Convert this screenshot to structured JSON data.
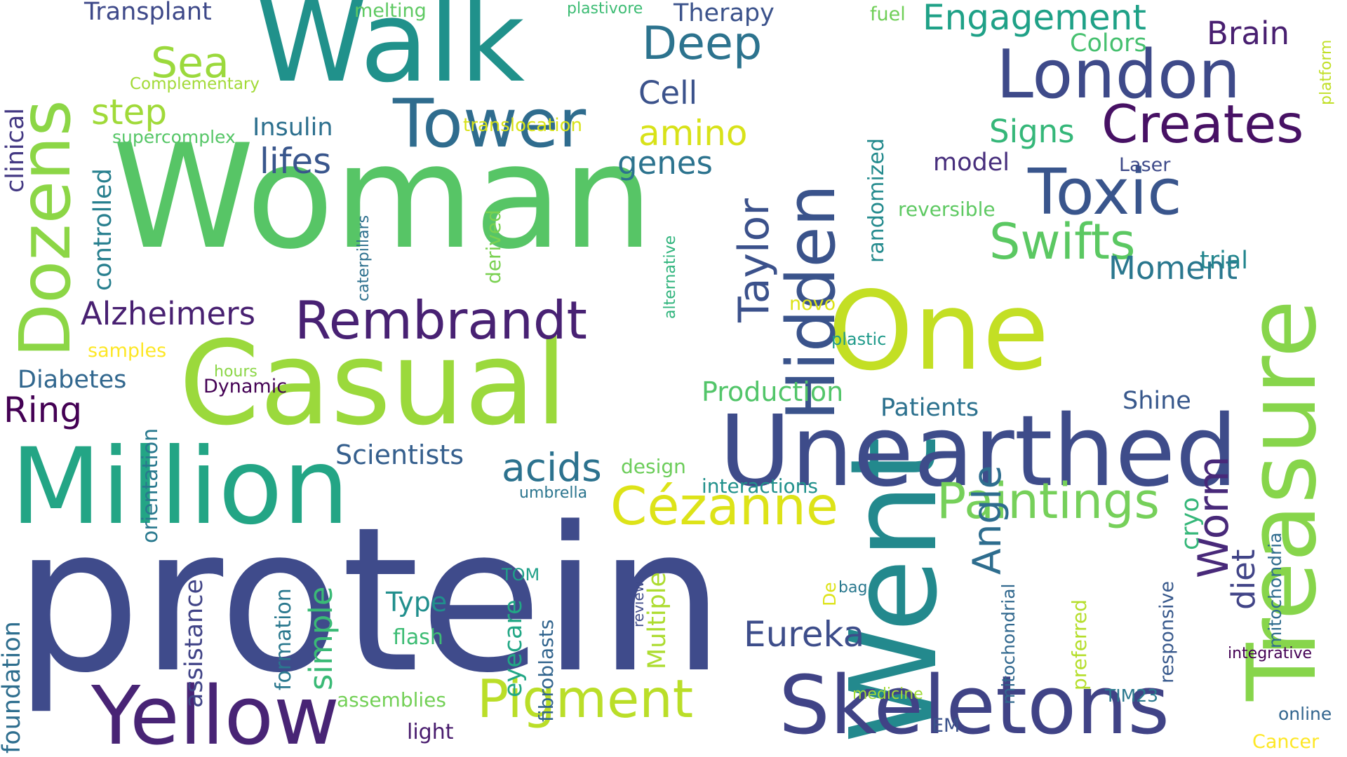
{
  "words": [
    {
      "text": "protein",
      "color": "#3f4b8b"
    },
    {
      "text": "Woman",
      "color": "#57c566"
    },
    {
      "text": "Walk",
      "color": "#20918b"
    },
    {
      "text": "Went",
      "color": "#23898d"
    },
    {
      "text": "Casual",
      "color": "#9bd93c"
    },
    {
      "text": "Million",
      "color": "#23a585"
    },
    {
      "text": "One",
      "color": "#c3df24"
    },
    {
      "text": "Treasure",
      "color": "#87d54b"
    },
    {
      "text": "Unearthed",
      "color": "#3e4c8a"
    },
    {
      "text": "Hidden",
      "color": "#3a538b"
    },
    {
      "text": "Skeletons",
      "color": "#404386"
    },
    {
      "text": "Yellow",
      "color": "#482475"
    },
    {
      "text": "Dozens",
      "color": "#8cd646"
    },
    {
      "text": "Tower",
      "color": "#2f6c8e"
    },
    {
      "text": "London",
      "color": "#3e4a89"
    },
    {
      "text": "Toxic",
      "color": "#39558c"
    },
    {
      "text": "Creates",
      "color": "#471164"
    },
    {
      "text": "Rembrandt",
      "color": "#482173"
    },
    {
      "text": "Pigment",
      "color": "#bade28"
    },
    {
      "text": "Cézanne",
      "color": "#dde318"
    },
    {
      "text": "Paintings",
      "color": "#76d05a"
    },
    {
      "text": "Swifts",
      "color": "#5bc862"
    },
    {
      "text": "Taylor",
      "color": "#3b518b"
    },
    {
      "text": "Deep",
      "color": "#2c738e"
    },
    {
      "text": "Engagement",
      "color": "#1fa187"
    },
    {
      "text": "Sea",
      "color": "#9bd93c"
    },
    {
      "text": "Worm",
      "color": "#482979"
    },
    {
      "text": "Angle",
      "color": "#2e6d8e"
    },
    {
      "text": "Eureka",
      "color": "#3d4d8a"
    },
    {
      "text": "acids",
      "color": "#2c728e"
    },
    {
      "text": "Moment",
      "color": "#2a778e"
    },
    {
      "text": "Brain",
      "color": "#481f70"
    },
    {
      "text": "Alzheimers",
      "color": "#482071"
    },
    {
      "text": "Ring",
      "color": "#440154"
    },
    {
      "text": "amino",
      "color": "#d8e219"
    },
    {
      "text": "genes",
      "color": "#2c738e"
    },
    {
      "text": "lifes",
      "color": "#39568c"
    },
    {
      "text": "step",
      "color": "#a0da39"
    },
    {
      "text": "Cell",
      "color": "#3b528b"
    },
    {
      "text": "Signs",
      "color": "#35b779"
    },
    {
      "text": "Production",
      "color": "#52c569"
    },
    {
      "text": "Scientists",
      "color": "#355f8d"
    },
    {
      "text": "Patients",
      "color": "#2c718e"
    },
    {
      "text": "Transplant",
      "color": "#3e4989"
    },
    {
      "text": "Therapy",
      "color": "#3b528b"
    },
    {
      "text": "Insulin",
      "color": "#2d708e"
    },
    {
      "text": "Diabetes",
      "color": "#31678e"
    },
    {
      "text": "Shine",
      "color": "#38588c"
    },
    {
      "text": "Colors",
      "color": "#46c06f"
    },
    {
      "text": "model",
      "color": "#472e7c"
    },
    {
      "text": "trial",
      "color": "#24868e"
    },
    {
      "text": "Type",
      "color": "#218f8d"
    },
    {
      "text": "simple",
      "color": "#3aba76"
    },
    {
      "text": "diet",
      "color": "#414487"
    },
    {
      "text": "Multiple",
      "color": "#addc30"
    },
    {
      "text": "cryo",
      "color": "#35b779"
    },
    {
      "text": "controlled",
      "color": "#277f8e"
    },
    {
      "text": "clinical",
      "color": "#443983"
    },
    {
      "text": "randomized",
      "color": "#238a8d"
    },
    {
      "text": "reversible",
      "color": "#5ec962"
    },
    {
      "text": "foundation",
      "color": "#2e6e8e"
    },
    {
      "text": "orientation",
      "color": "#29798e"
    },
    {
      "text": "assistance",
      "color": "#414487"
    },
    {
      "text": "formation",
      "color": "#2a788e"
    },
    {
      "text": "eyecare",
      "color": "#22a785"
    },
    {
      "text": "fibroblasts",
      "color": "#32658e"
    },
    {
      "text": "light",
      "color": "#481b6d"
    },
    {
      "text": "flash",
      "color": "#3dbc74"
    },
    {
      "text": "assemblies",
      "color": "#73d056"
    },
    {
      "text": "interactions",
      "color": "#21918c"
    },
    {
      "text": "design",
      "color": "#6ccd5a"
    },
    {
      "text": "umbrella",
      "color": "#2b758e"
    },
    {
      "text": "supercomplex",
      "color": "#56c667"
    },
    {
      "text": "samples",
      "color": "#fde725"
    },
    {
      "text": "hours",
      "color": "#8bd646"
    },
    {
      "text": "Dynamic",
      "color": "#440154"
    },
    {
      "text": "translocation",
      "color": "#d8e219"
    },
    {
      "text": "Complementary",
      "color": "#a2da37"
    },
    {
      "text": "melting",
      "color": "#5ec962"
    },
    {
      "text": "plastivore",
      "color": "#3dbc74"
    },
    {
      "text": "fuel",
      "color": "#70cf57"
    },
    {
      "text": "platform",
      "color": "#c0df25"
    },
    {
      "text": "Laser",
      "color": "#3e4a89"
    },
    {
      "text": "novo",
      "color": "#dce319"
    },
    {
      "text": "plastic",
      "color": "#1f9a8a"
    },
    {
      "text": "alternative",
      "color": "#2fb47c"
    },
    {
      "text": "derived",
      "color": "#7ad151"
    },
    {
      "text": "caterpillars",
      "color": "#2d708e"
    },
    {
      "text": "mitochondrial",
      "color": "#31688e"
    },
    {
      "text": "mitochondria",
      "color": "#2f6c8e"
    },
    {
      "text": "preferred",
      "color": "#b5de2b"
    },
    {
      "text": "responsive",
      "color": "#38598c"
    },
    {
      "text": "integrative",
      "color": "#440154"
    },
    {
      "text": "online",
      "color": "#32658e"
    },
    {
      "text": "Cancer",
      "color": "#fde725"
    },
    {
      "text": "EM",
      "color": "#3b528b"
    },
    {
      "text": "TIM23",
      "color": "#2a788e"
    },
    {
      "text": "medicine",
      "color": "#a2da37"
    },
    {
      "text": "bag",
      "color": "#2a788e"
    },
    {
      "text": "De",
      "color": "#dde318"
    },
    {
      "text": "review",
      "color": "#3e4a89"
    },
    {
      "text": "TOM",
      "color": "#1fa088"
    }
  ]
}
